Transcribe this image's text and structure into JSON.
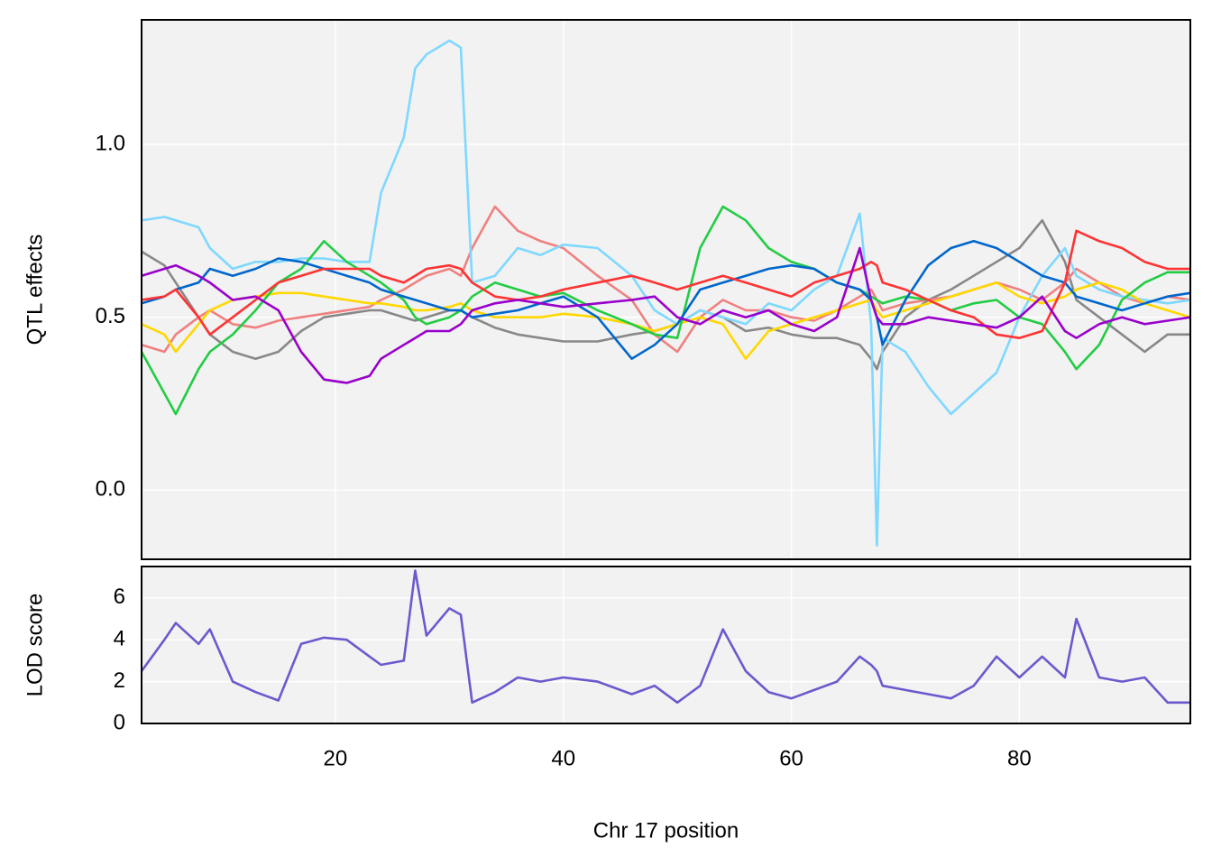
{
  "chart_data": [
    {
      "type": "line",
      "ylabel": "QTL effects",
      "x": [
        3,
        5,
        6,
        8,
        9,
        11,
        13,
        15,
        17,
        19,
        21,
        23,
        24,
        26,
        27,
        28,
        30,
        31,
        32,
        34,
        36,
        38,
        40,
        43,
        46,
        48,
        50,
        52,
        54,
        56,
        58,
        60,
        62,
        64,
        66,
        67,
        67.5,
        68,
        70,
        72,
        74,
        76,
        78,
        80,
        82,
        84,
        85,
        87,
        89,
        91,
        93,
        95
      ],
      "xlim": [
        3,
        95
      ],
      "ylim": [
        -0.2,
        1.36
      ],
      "yticks": [
        {
          "value": 0,
          "label": "0.0"
        },
        0.5,
        {
          "value": 1,
          "label": "1.0"
        }
      ],
      "grid": true,
      "series": [
        {
          "color": "#888888",
          "values": [
            0.69,
            0.65,
            0.6,
            0.5,
            0.45,
            0.4,
            0.38,
            0.4,
            0.46,
            0.5,
            0.51,
            0.52,
            0.52,
            0.5,
            0.49,
            0.5,
            0.52,
            0.52,
            0.5,
            0.47,
            0.45,
            0.44,
            0.43,
            0.43,
            0.45,
            0.46,
            0.48,
            0.52,
            0.5,
            0.46,
            0.47,
            0.45,
            0.44,
            0.44,
            0.42,
            0.38,
            0.35,
            0.4,
            0.5,
            0.55,
            0.58,
            0.62,
            0.66,
            0.7,
            0.78,
            0.66,
            0.55,
            0.5,
            0.45,
            0.4,
            0.45,
            0.45
          ]
        },
        {
          "color": "#f08080",
          "values": [
            0.42,
            0.4,
            0.45,
            0.5,
            0.52,
            0.48,
            0.47,
            0.49,
            0.5,
            0.51,
            0.52,
            0.53,
            0.55,
            0.58,
            0.6,
            0.62,
            0.64,
            0.62,
            0.7,
            0.82,
            0.75,
            0.72,
            0.7,
            0.62,
            0.55,
            0.45,
            0.4,
            0.5,
            0.55,
            0.52,
            0.52,
            0.5,
            0.49,
            0.52,
            0.56,
            0.58,
            0.55,
            0.52,
            0.54,
            0.55,
            0.56,
            0.58,
            0.6,
            0.58,
            0.55,
            0.6,
            0.64,
            0.6,
            0.56,
            0.54,
            0.56,
            0.55
          ]
        },
        {
          "color": "#7fd8ff",
          "values": [
            0.78,
            0.79,
            0.78,
            0.76,
            0.7,
            0.64,
            0.66,
            0.66,
            0.67,
            0.67,
            0.66,
            0.66,
            0.86,
            1.02,
            1.22,
            1.26,
            1.3,
            1.28,
            0.6,
            0.62,
            0.7,
            0.68,
            0.71,
            0.7,
            0.62,
            0.52,
            0.48,
            0.52,
            0.5,
            0.48,
            0.54,
            0.52,
            0.58,
            0.62,
            0.8,
            0.48,
            -0.16,
            0.44,
            0.4,
            0.3,
            0.22,
            0.28,
            0.34,
            0.5,
            0.62,
            0.7,
            0.62,
            0.58,
            0.56,
            0.55,
            0.54,
            0.55
          ]
        },
        {
          "color": "#ffd700",
          "values": [
            0.48,
            0.45,
            0.4,
            0.48,
            0.52,
            0.55,
            0.56,
            0.57,
            0.57,
            0.56,
            0.55,
            0.54,
            0.54,
            0.53,
            0.52,
            0.52,
            0.53,
            0.54,
            0.52,
            0.5,
            0.5,
            0.5,
            0.51,
            0.5,
            0.48,
            0.46,
            0.48,
            0.5,
            0.48,
            0.38,
            0.46,
            0.48,
            0.5,
            0.52,
            0.54,
            0.55,
            0.52,
            0.5,
            0.52,
            0.54,
            0.56,
            0.58,
            0.6,
            0.56,
            0.54,
            0.56,
            0.58,
            0.6,
            0.58,
            0.54,
            0.52,
            0.5
          ]
        },
        {
          "color": "#22cc44",
          "values": [
            0.4,
            0.28,
            0.22,
            0.35,
            0.4,
            0.45,
            0.52,
            0.6,
            0.64,
            0.72,
            0.66,
            0.62,
            0.6,
            0.55,
            0.5,
            0.48,
            0.5,
            0.52,
            0.56,
            0.6,
            0.58,
            0.56,
            0.57,
            0.52,
            0.48,
            0.45,
            0.44,
            0.7,
            0.82,
            0.78,
            0.7,
            0.66,
            0.64,
            0.6,
            0.58,
            0.56,
            0.55,
            0.54,
            0.56,
            0.55,
            0.52,
            0.54,
            0.55,
            0.5,
            0.48,
            0.4,
            0.35,
            0.42,
            0.55,
            0.6,
            0.63,
            0.63
          ]
        },
        {
          "color": "#0066cc",
          "values": [
            0.54,
            0.56,
            0.58,
            0.6,
            0.64,
            0.62,
            0.64,
            0.67,
            0.66,
            0.64,
            0.62,
            0.6,
            0.58,
            0.56,
            0.55,
            0.54,
            0.52,
            0.52,
            0.5,
            0.51,
            0.52,
            0.54,
            0.56,
            0.5,
            0.38,
            0.42,
            0.48,
            0.58,
            0.6,
            0.62,
            0.64,
            0.65,
            0.64,
            0.6,
            0.58,
            0.55,
            0.5,
            0.42,
            0.55,
            0.65,
            0.7,
            0.72,
            0.7,
            0.66,
            0.62,
            0.6,
            0.56,
            0.54,
            0.52,
            0.54,
            0.56,
            0.57
          ]
        },
        {
          "color": "#ff3333",
          "values": [
            0.55,
            0.56,
            0.58,
            0.5,
            0.45,
            0.5,
            0.55,
            0.6,
            0.62,
            0.64,
            0.64,
            0.64,
            0.62,
            0.6,
            0.62,
            0.64,
            0.65,
            0.64,
            0.6,
            0.56,
            0.55,
            0.56,
            0.58,
            0.6,
            0.62,
            0.6,
            0.58,
            0.6,
            0.62,
            0.6,
            0.58,
            0.56,
            0.6,
            0.62,
            0.64,
            0.66,
            0.65,
            0.6,
            0.58,
            0.55,
            0.52,
            0.5,
            0.45,
            0.44,
            0.46,
            0.6,
            0.75,
            0.72,
            0.7,
            0.66,
            0.64,
            0.64
          ]
        },
        {
          "color": "#9900cc",
          "values": [
            0.62,
            0.64,
            0.65,
            0.62,
            0.6,
            0.55,
            0.56,
            0.52,
            0.4,
            0.32,
            0.31,
            0.33,
            0.38,
            0.42,
            0.44,
            0.46,
            0.46,
            0.48,
            0.52,
            0.54,
            0.55,
            0.54,
            0.53,
            0.54,
            0.55,
            0.56,
            0.5,
            0.48,
            0.52,
            0.5,
            0.52,
            0.48,
            0.46,
            0.5,
            0.7,
            0.55,
            0.5,
            0.48,
            0.48,
            0.5,
            0.49,
            0.48,
            0.47,
            0.5,
            0.56,
            0.46,
            0.44,
            0.48,
            0.5,
            0.48,
            0.49,
            0.5
          ]
        }
      ]
    },
    {
      "type": "line",
      "ylabel": "LOD score",
      "xlabel": "Chr 17 position",
      "x": [
        3,
        5,
        6,
        8,
        9,
        11,
        13,
        15,
        17,
        19,
        21,
        23,
        24,
        26,
        27,
        28,
        30,
        31,
        32,
        34,
        36,
        38,
        40,
        43,
        46,
        48,
        50,
        52,
        54,
        56,
        58,
        60,
        62,
        64,
        66,
        67,
        67.5,
        68,
        70,
        72,
        74,
        76,
        78,
        80,
        82,
        84,
        85,
        87,
        89,
        91,
        93,
        95
      ],
      "xlim": [
        3,
        95
      ],
      "xticks": [
        20,
        40,
        60,
        80
      ],
      "ylim": [
        0,
        7.5
      ],
      "yticks": [
        0,
        2,
        4,
        6
      ],
      "grid": true,
      "series": [
        {
          "color": "#6a5acd",
          "values": [
            2.5,
            4.0,
            4.8,
            3.8,
            4.5,
            2.0,
            1.5,
            1.1,
            3.8,
            4.1,
            4.0,
            3.2,
            2.8,
            3.0,
            7.3,
            4.2,
            5.5,
            5.2,
            1.0,
            1.5,
            2.2,
            2.0,
            2.2,
            2.0,
            1.4,
            1.8,
            1.0,
            1.8,
            4.5,
            2.5,
            1.5,
            1.2,
            1.6,
            2.0,
            3.2,
            2.8,
            2.5,
            1.8,
            1.6,
            1.4,
            1.2,
            1.8,
            3.2,
            2.2,
            3.2,
            2.2,
            5.0,
            2.2,
            2.0,
            2.2,
            1.0,
            1.0
          ]
        }
      ]
    }
  ]
}
